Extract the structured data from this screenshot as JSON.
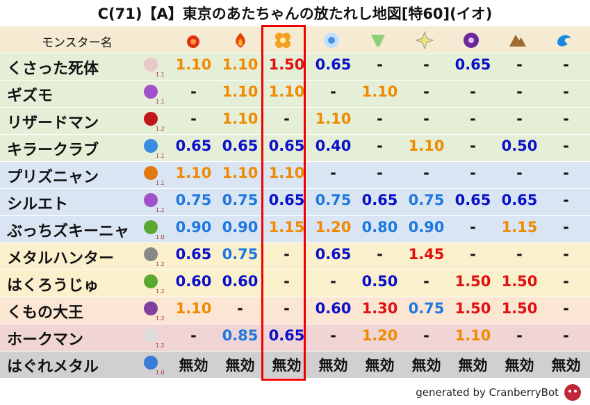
{
  "title": "C(71)【A】東京のあたちゃんの放たれし地図[特60](イオ)",
  "table": {
    "header": "モンスター名",
    "rows": [
      {
        "name": "くさった死体",
        "level": "1.1",
        "cells": [
          "1.10",
          "1.10",
          "1.50",
          "0.65",
          "-",
          "-",
          "0.65",
          "-",
          "-"
        ]
      },
      {
        "name": "ギズモ",
        "level": "1.1",
        "cells": [
          "-",
          "1.10",
          "1.10",
          "-",
          "1.10",
          "-",
          "-",
          "-",
          "-"
        ]
      },
      {
        "name": "リザードマン",
        "level": "1.2",
        "cells": [
          "-",
          "1.10",
          "-",
          "1.10",
          "-",
          "-",
          "-",
          "-",
          "-"
        ]
      },
      {
        "name": "キラークラブ",
        "level": "1.1",
        "cells": [
          "0.65",
          "0.65",
          "0.65",
          "0.40",
          "-",
          "1.10",
          "-",
          "0.50",
          "-"
        ]
      },
      {
        "name": "プリズニャン",
        "level": "1.1",
        "cells": [
          "1.10",
          "1.10",
          "1.10",
          "-",
          "-",
          "-",
          "-",
          "-",
          "-"
        ]
      },
      {
        "name": "シルエト",
        "level": "1.1",
        "cells": [
          "0.75",
          "0.75",
          "0.65",
          "0.75",
          "0.65",
          "0.75",
          "0.65",
          "0.65",
          "-"
        ]
      },
      {
        "name": "ぶっちズキーニャ",
        "level": "1.0",
        "cells": [
          "0.90",
          "0.90",
          "1.15",
          "1.20",
          "0.80",
          "0.90",
          "-",
          "1.15",
          "-"
        ]
      },
      {
        "name": "メタルハンター",
        "level": "1.2",
        "cells": [
          "0.65",
          "0.75",
          "-",
          "0.65",
          "-",
          "1.45",
          "-",
          "-",
          "-"
        ]
      },
      {
        "name": "はくろうじゅ",
        "level": "1.2",
        "cells": [
          "0.60",
          "0.60",
          "-",
          "-",
          "0.50",
          "-",
          "1.50",
          "1.50",
          "-"
        ]
      },
      {
        "name": "くもの大王",
        "level": "1.2",
        "cells": [
          "1.10",
          "-",
          "-",
          "0.60",
          "1.30",
          "0.75",
          "1.50",
          "1.50",
          "-"
        ]
      },
      {
        "name": "ホークマン",
        "level": "1.2",
        "cells": [
          "-",
          "0.85",
          "0.65",
          "-",
          "1.20",
          "-",
          "1.10",
          "-",
          "-"
        ]
      },
      {
        "name": "はぐれメタル",
        "level": "1.0",
        "cells": [
          "無効",
          "無効",
          "無効",
          "無効",
          "無効",
          "無効",
          "無効",
          "無効",
          "無効"
        ]
      }
    ]
  },
  "footer": "generated by CranberryBot"
}
